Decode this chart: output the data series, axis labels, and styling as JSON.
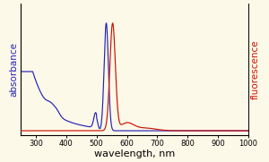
{
  "title": "",
  "xlabel": "wavelength, nm",
  "ylabel_left": "absorbance",
  "ylabel_right": "fluorescence",
  "xlim": [
    250,
    1000
  ],
  "xticks": [
    300,
    400,
    500,
    600,
    700,
    800,
    900,
    1000
  ],
  "background_color": "#fdf9e8",
  "blue_color": "#2222bb",
  "red_color": "#cc1100",
  "xlabel_fontsize": 8,
  "ylabel_fontsize": 7.5
}
